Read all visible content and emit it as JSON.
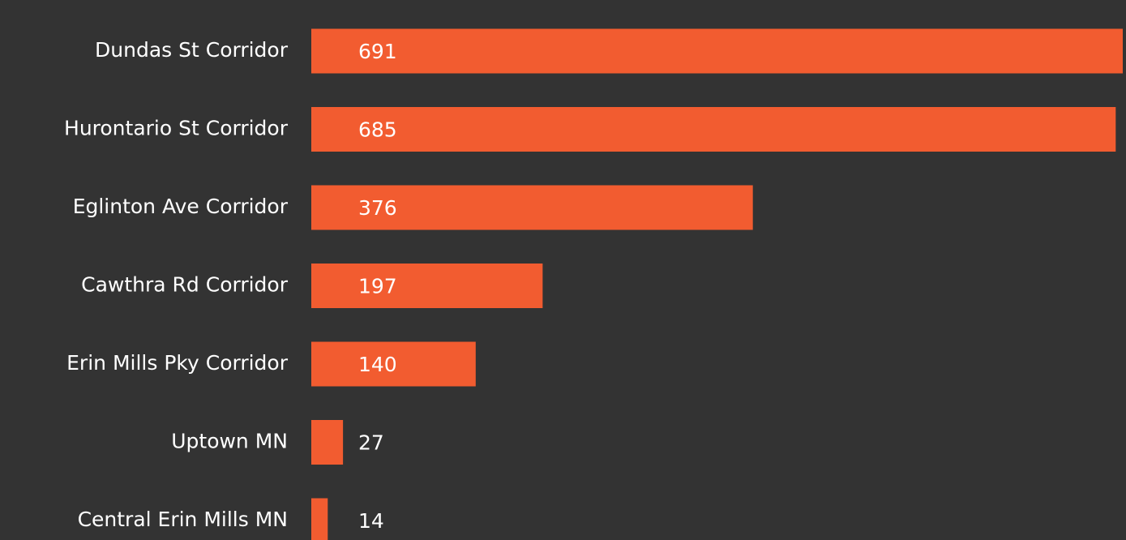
{
  "chart_data": {
    "type": "bar",
    "categories": [
      "Dundas St Corridor",
      "Hurontario St Corridor",
      "Eglinton Ave Corridor",
      "Cawthra Rd Corridor",
      "Erin Mills Pky Corridor",
      "Uptown MN",
      "Central Erin Mills MN"
    ],
    "values": [
      691,
      685,
      376,
      197,
      140,
      27,
      14
    ],
    "color": "#f25c30"
  }
}
